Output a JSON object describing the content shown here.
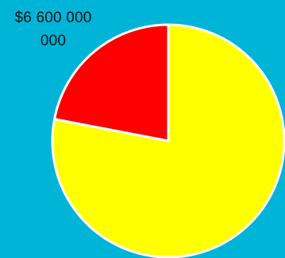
{
  "chart_data": {
    "type": "pie",
    "annotation": "$6 600 000 000",
    "slices": [
      {
        "value": 0.22,
        "color": "#FF0000"
      },
      {
        "value": 0.78,
        "color": "#FFFF00"
      }
    ]
  },
  "colors": {
    "background": "#00B4D8",
    "slice_border": "#FFFFFF"
  }
}
